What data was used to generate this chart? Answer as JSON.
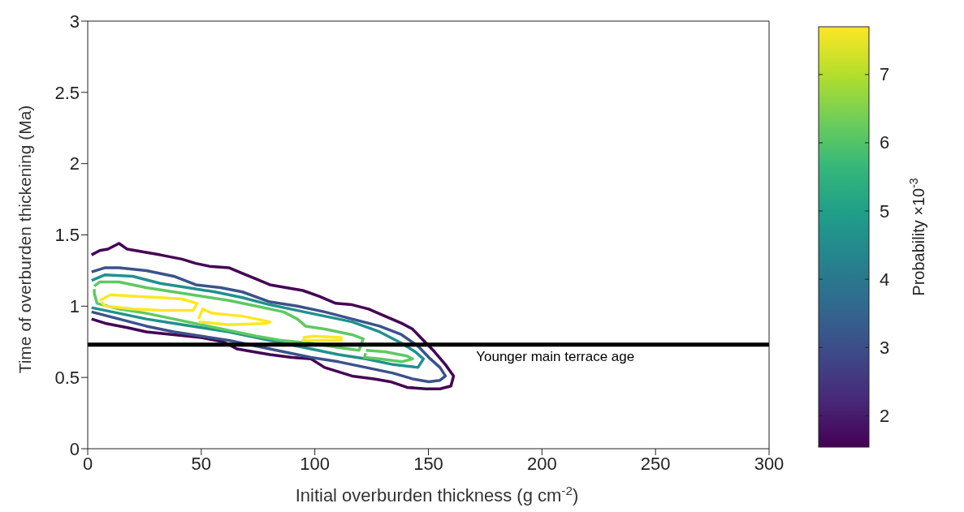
{
  "chart_data": {
    "type": "line",
    "xlabel": "Initial overburden thickness (g cm$^{-2}$)",
    "ylabel": "Time of overburden thickening (Ma)",
    "clabel": "Probability ×10$^{-3}$",
    "xlim": [
      0,
      300
    ],
    "xticks": [
      0,
      50,
      100,
      150,
      200,
      250,
      300
    ],
    "ylim": [
      0,
      3
    ],
    "yticks": [
      0,
      0.5,
      1,
      1.5,
      2,
      2.5,
      3
    ],
    "clim": [
      1.54,
      7.7
    ],
    "cticks": [
      2,
      3,
      4,
      5,
      6,
      7
    ],
    "marker": "none",
    "series": [
      {
        "color": "#440154",
        "x": [
          1.7,
          5.3,
          8.9,
          13.8,
          17.4,
          24.6,
          31.9,
          41.5,
          47.6,
          53.6,
          62.1,
          68.1,
          74.2,
          80.2,
          87.4,
          94.7,
          101.9,
          109.2,
          116.4,
          123.7,
          130.9,
          138.2,
          143.0,
          147.8,
          152.7,
          157.5,
          161.1,
          159.9,
          155.1,
          149.0,
          140.6,
          133.3,
          126.1,
          116.4,
          104.3,
          98.3,
          89.9,
          80.2,
          72.9,
          65.7,
          59.7,
          50.0,
          37.9,
          25.8,
          17.4,
          7.7,
          1.7
        ],
        "values": [
          1.36,
          1.39,
          1.4,
          1.44,
          1.4,
          1.38,
          1.36,
          1.33,
          1.3,
          1.28,
          1.27,
          1.23,
          1.19,
          1.15,
          1.13,
          1.11,
          1.07,
          1.02,
          1.01,
          0.98,
          0.93,
          0.88,
          0.84,
          0.76,
          0.68,
          0.59,
          0.51,
          0.44,
          0.42,
          0.42,
          0.43,
          0.47,
          0.49,
          0.51,
          0.57,
          0.63,
          0.64,
          0.66,
          0.68,
          0.7,
          0.75,
          0.78,
          0.8,
          0.82,
          0.85,
          0.88,
          0.91
        ]
      },
      {
        "color": "#3b528b",
        "x": [
          1.7,
          7.7,
          13.8,
          25.8,
          37.9,
          47.6,
          58.5,
          68.1,
          80.2,
          92.3,
          104.3,
          116.4,
          128.5,
          138.2,
          145.4,
          150.2,
          155.1,
          157.5,
          155.1,
          150.2,
          143.0,
          134.5,
          122.5,
          110.4,
          98.3,
          86.2,
          74.2,
          62.1,
          50.0,
          37.9,
          25.8,
          13.8,
          1.7
        ],
        "values": [
          1.24,
          1.27,
          1.27,
          1.25,
          1.21,
          1.15,
          1.13,
          1.1,
          1.03,
          1.0,
          0.96,
          0.91,
          0.86,
          0.8,
          0.72,
          0.64,
          0.57,
          0.51,
          0.48,
          0.47,
          0.49,
          0.53,
          0.57,
          0.61,
          0.64,
          0.68,
          0.72,
          0.76,
          0.79,
          0.82,
          0.86,
          0.91,
          0.96
        ]
      },
      {
        "color": "#21918c",
        "x": [
          1.7,
          7.7,
          19.8,
          31.9,
          44.0,
          56.0,
          68.1,
          80.2,
          92.3,
          104.3,
          116.4,
          128.5,
          138.2,
          144.2,
          147.8,
          145.4,
          134.5,
          122.5,
          110.4,
          98.3,
          86.2,
          74.2,
          62.1,
          50.0,
          37.9,
          25.8,
          13.8,
          1.7
        ],
        "values": [
          1.18,
          1.22,
          1.21,
          1.16,
          1.13,
          1.1,
          1.06,
          1.01,
          0.97,
          0.93,
          0.89,
          0.82,
          0.74,
          0.68,
          0.63,
          0.57,
          0.59,
          0.63,
          0.66,
          0.7,
          0.74,
          0.78,
          0.82,
          0.85,
          0.88,
          0.91,
          0.95,
          0.99
        ]
      },
      {
        "color": "#5ec962",
        "x": [
          2.9,
          5.3,
          13.8,
          25.8,
          37.9,
          50.0,
          62.1,
          74.2,
          86.2,
          92.3,
          95.9,
          104.3,
          116.4,
          121.3,
          119.4,
          110.4,
          98.3,
          85.0,
          74.2,
          62.1,
          50.0,
          37.9,
          25.8,
          13.8,
          4.1,
          2.9,
          2.9
        ],
        "values": [
          1.14,
          1.17,
          1.17,
          1.13,
          1.1,
          1.07,
          1.04,
          1.0,
          0.96,
          0.91,
          0.86,
          0.84,
          0.8,
          0.77,
          0.69,
          0.71,
          0.74,
          0.76,
          0.79,
          0.83,
          0.87,
          0.91,
          0.95,
          0.98,
          1.02,
          1.09,
          1.12
        ]
      },
      {
        "color": "#5ec962",
        "x": [
          122.5,
          130.9,
          140.6,
          143.0,
          138.2,
          128.5,
          121.9,
          122.3
        ],
        "values": [
          0.69,
          0.68,
          0.65,
          0.63,
          0.61,
          0.63,
          0.64,
          0.67
        ]
      },
      {
        "color": "#fde725",
        "x": [
          5.3,
          10.1,
          19.8,
          31.9,
          41.5,
          48.2,
          46.4,
          31.9,
          19.8,
          7.7,
          6.0
        ],
        "values": [
          1.04,
          1.08,
          1.07,
          1.06,
          1.05,
          1.02,
          0.97,
          0.97,
          0.98,
          1.0,
          1.03
        ]
      },
      {
        "color": "#fde725",
        "x": [
          48.8,
          50.6,
          54.8,
          68.1,
          80.2,
          79.0,
          62.1,
          48.8
        ],
        "values": [
          0.91,
          0.98,
          0.95,
          0.93,
          0.89,
          0.88,
          0.87,
          0.89
        ]
      },
      {
        "color": "#fde725",
        "x": [
          94.7,
          99.5,
          111.6,
          111.6,
          94.7,
          94.7
        ],
        "values": [
          0.78,
          0.79,
          0.78,
          0.76,
          0.76,
          0.77
        ]
      }
    ],
    "ref_lines": [
      {
        "axis": "y",
        "value": 0.73,
        "label": "Younger main terrace age",
        "color": "#000000"
      }
    ]
  }
}
